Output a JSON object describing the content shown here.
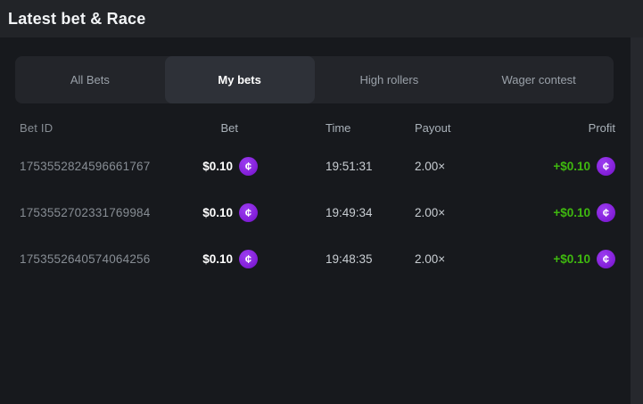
{
  "colors": {
    "coin_purple": "#8824dd",
    "coin_purple_dark": "#6e10c4",
    "profit_green": "#3fb90f"
  },
  "header": {
    "title": "Latest bet & Race"
  },
  "tabs": {
    "items": [
      {
        "label": "All Bets",
        "active": false
      },
      {
        "label": "My bets",
        "active": true
      },
      {
        "label": "High rollers",
        "active": false
      },
      {
        "label": "Wager contest",
        "active": false
      }
    ]
  },
  "table": {
    "columns": [
      "Bet ID",
      "Bet",
      "Time",
      "Payout",
      "Profit"
    ],
    "rows": [
      {
        "bet_id": "1753552824596661767",
        "bet": "$0.10",
        "time": "19:51:31",
        "payout": "2.00×",
        "profit": "+$0.10"
      },
      {
        "bet_id": "1753552702331769984",
        "bet": "$0.10",
        "time": "19:49:34",
        "payout": "2.00×",
        "profit": "+$0.10"
      },
      {
        "bet_id": "1753552640574064256",
        "bet": "$0.10",
        "time": "19:48:35",
        "payout": "2.00×",
        "profit": "+$0.10"
      }
    ]
  },
  "icons": {
    "coin_glyph": "¢"
  }
}
